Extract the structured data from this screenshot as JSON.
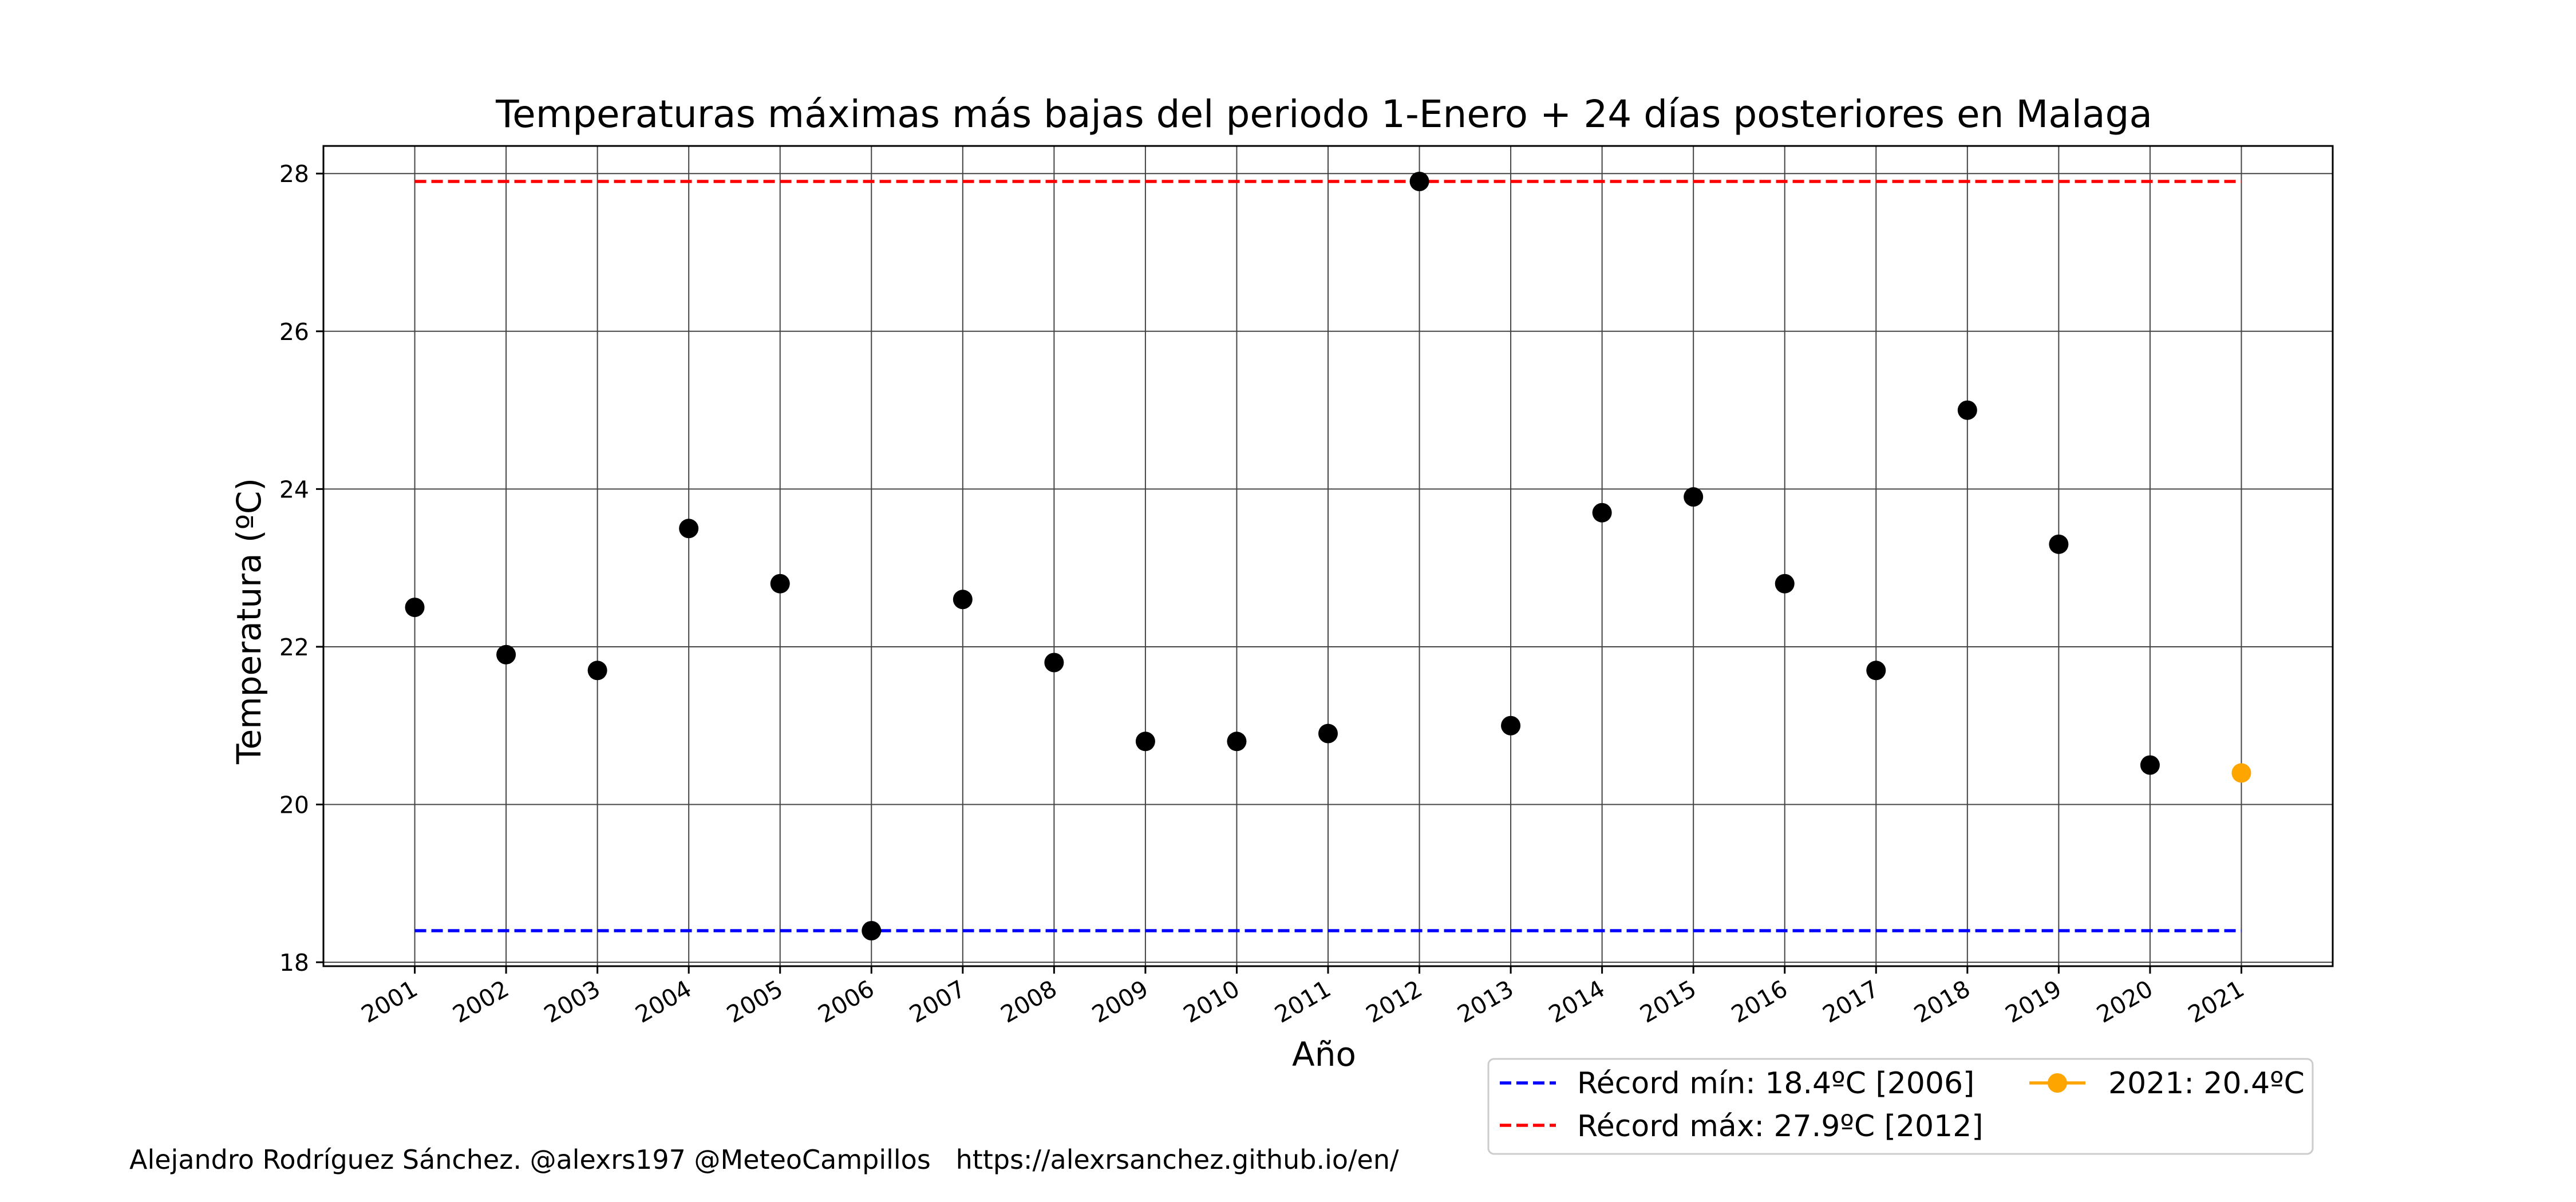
{
  "chart_data": {
    "type": "scatter",
    "title": "Temperaturas máximas más bajas del periodo 1-Enero + 24 días posteriores en Malaga",
    "xlabel": "Año",
    "ylabel": "Temperatura (ºC)",
    "xlim": [
      2000,
      2022
    ],
    "ylim": [
      17.95,
      28.35
    ],
    "yticks": [
      18,
      20,
      22,
      24,
      26,
      28
    ],
    "x_tick_labels": [
      "2001",
      "2002",
      "2003",
      "2004",
      "2005",
      "2006",
      "2007",
      "2008",
      "2009",
      "2010",
      "2011",
      "2012",
      "2013",
      "2014",
      "2015",
      "2016",
      "2017",
      "2018",
      "2019",
      "2020",
      "2021"
    ],
    "grid": true,
    "legend_placement": "below-right",
    "series": [
      {
        "type": "scatter",
        "color": "#000000",
        "x": [
          2001,
          2002,
          2003,
          2004,
          2005,
          2006,
          2007,
          2008,
          2009,
          2010,
          2011,
          2012,
          2013,
          2014,
          2015,
          2016,
          2017,
          2018,
          2019,
          2020
        ],
        "values": [
          22.5,
          21.9,
          21.7,
          23.5,
          22.8,
          18.4,
          22.6,
          21.8,
          20.8,
          20.8,
          20.9,
          27.9,
          21.0,
          23.7,
          23.9,
          22.8,
          21.7,
          25.0,
          23.3,
          20.5
        ]
      },
      {
        "name": "2021: 20.4ºC",
        "type": "scatter",
        "color": "#FFA500",
        "x": [
          2021
        ],
        "values": [
          20.4
        ]
      },
      {
        "name": "Récord mín: 18.4ºC [2006]",
        "type": "hline",
        "style": "dashed",
        "color": "#0000FF",
        "value": 18.4,
        "x_range": [
          2001,
          2021
        ]
      },
      {
        "name": "Récord máx: 27.9ºC [2012]",
        "type": "hline",
        "style": "dashed",
        "color": "#FF0000",
        "value": 27.9,
        "x_range": [
          2001,
          2021
        ]
      }
    ]
  },
  "credit": "Alejandro Rodríguez Sánchez. @alexrs197 @MeteoCampillos   https://alexrsanchez.github.io/en/"
}
